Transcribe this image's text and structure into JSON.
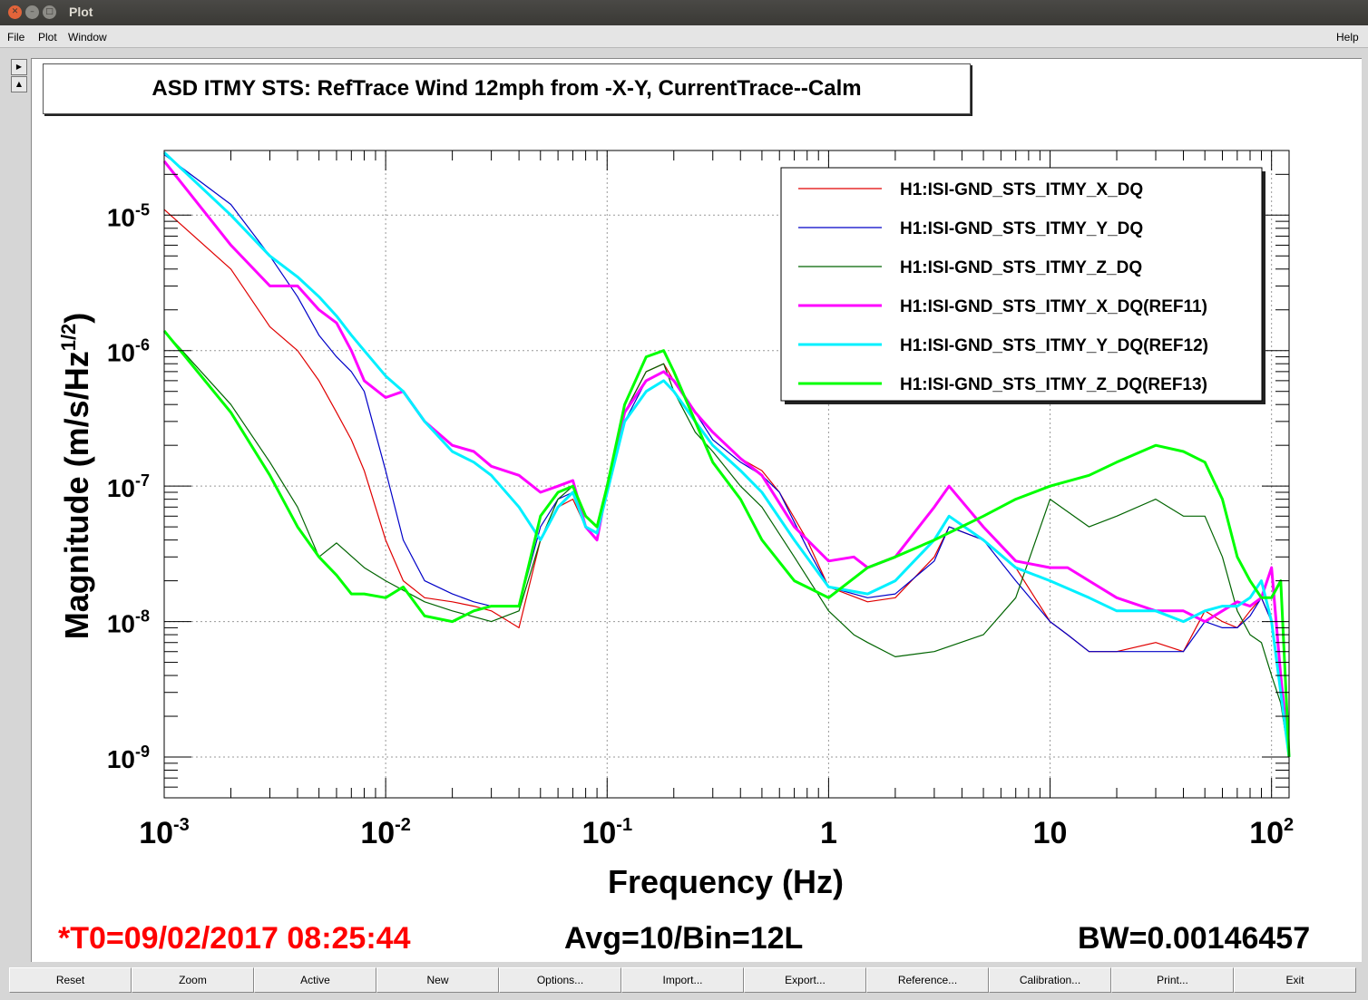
{
  "window": {
    "title": "Plot"
  },
  "menu": {
    "file": "File",
    "plot": "Plot",
    "window": "Window",
    "help": "Help"
  },
  "plot_title": "ASD ITMY STS: RefTrace Wind 12mph from -X-Y, CurrentTrace--Calm",
  "footer": {
    "t0": "*T0=09/02/2017 08:25:44",
    "avg": "Avg=10/Bin=12L",
    "bw": "BW=0.00146457"
  },
  "buttons": [
    "Reset",
    "Zoom",
    "Active",
    "New",
    "Options...",
    "Import...",
    "Export...",
    "Reference...",
    "Calibration...",
    "Print...",
    "Exit"
  ],
  "colors": {
    "red": "#e00000",
    "blue": "#0000c8",
    "darkgreen": "#006400",
    "magenta": "#ff00ff",
    "cyan": "#00f0ff",
    "green": "#00ff00",
    "footer_red": "#ff0000"
  },
  "chart_data": {
    "type": "line",
    "xlabel": "Frequency (Hz)",
    "ylabel": "Magnitude (m/s/Hz^1/2)",
    "xscale": "log",
    "yscale": "log",
    "xlim": [
      0.001,
      120
    ],
    "ylim": [
      5e-10,
      3e-05
    ],
    "grid": true,
    "legend_position": "top-right",
    "x_ticks": [
      {
        "base": "10",
        "exp": "-3"
      },
      {
        "base": "10",
        "exp": "-2"
      },
      {
        "base": "10",
        "exp": "-1"
      },
      {
        "base": "1",
        "exp": ""
      },
      {
        "base": "10",
        "exp": ""
      },
      {
        "base": "10",
        "exp": "2"
      }
    ],
    "y_ticks": [
      {
        "base": "10",
        "exp": "-5"
      },
      {
        "base": "10",
        "exp": "-6"
      },
      {
        "base": "10",
        "exp": "-7"
      },
      {
        "base": "10",
        "exp": "-8"
      },
      {
        "base": "10",
        "exp": "-9"
      }
    ],
    "series": [
      {
        "name": "H1:ISI-GND_STS_ITMY_X_DQ",
        "color": "#e00000",
        "width": 1.2,
        "x": [
          0.001,
          0.002,
          0.003,
          0.004,
          0.005,
          0.006,
          0.007,
          0.008,
          0.01,
          0.012,
          0.015,
          0.02,
          0.025,
          0.03,
          0.04,
          0.05,
          0.06,
          0.07,
          0.08,
          0.09,
          0.1,
          0.12,
          0.15,
          0.18,
          0.2,
          0.25,
          0.3,
          0.4,
          0.5,
          0.6,
          0.8,
          1,
          1.5,
          2,
          3,
          3.5,
          5,
          7,
          10,
          12,
          15,
          20,
          30,
          40,
          50,
          60,
          70,
          80,
          90,
          100,
          110,
          120
        ],
        "y": [
          1.1e-05,
          4e-06,
          1.5e-06,
          1e-06,
          6e-07,
          3.5e-07,
          2.2e-07,
          1.3e-07,
          4e-08,
          2e-08,
          1.5e-08,
          1.4e-08,
          1.3e-08,
          1.2e-08,
          9e-09,
          4e-08,
          7e-08,
          8e-08,
          5e-08,
          4e-08,
          1e-07,
          3.5e-07,
          7e-07,
          8e-07,
          6e-07,
          3.5e-07,
          2.5e-07,
          1.6e-07,
          1.3e-07,
          9e-08,
          4e-08,
          1.8e-08,
          1.4e-08,
          1.5e-08,
          3e-08,
          5e-08,
          4e-08,
          2.5e-08,
          1e-08,
          8e-09,
          6e-09,
          6e-09,
          7e-09,
          6e-09,
          1.2e-08,
          1e-08,
          9e-09,
          1.2e-08,
          1.5e-08,
          1e-08,
          3e-09,
          1e-09
        ]
      },
      {
        "name": "H1:ISI-GND_STS_ITMY_Y_DQ",
        "color": "#0000c8",
        "width": 1.2,
        "x": [
          0.001,
          0.002,
          0.003,
          0.004,
          0.005,
          0.006,
          0.007,
          0.008,
          0.01,
          0.012,
          0.015,
          0.02,
          0.025,
          0.03,
          0.04,
          0.05,
          0.06,
          0.07,
          0.08,
          0.09,
          0.1,
          0.12,
          0.15,
          0.18,
          0.2,
          0.25,
          0.3,
          0.4,
          0.5,
          0.6,
          0.8,
          1,
          1.5,
          2,
          3,
          3.5,
          5,
          7,
          10,
          12,
          15,
          20,
          30,
          40,
          50,
          60,
          70,
          80,
          90,
          100,
          110,
          120
        ],
        "y": [
          2.8e-05,
          1.2e-05,
          5e-06,
          2.5e-06,
          1.3e-06,
          9e-07,
          7e-07,
          5e-07,
          1.3e-07,
          4e-08,
          2e-08,
          1.6e-08,
          1.4e-08,
          1.3e-08,
          1.3e-08,
          5e-08,
          8e-08,
          9e-08,
          5e-08,
          4.5e-08,
          1e-07,
          3e-07,
          6e-07,
          7e-07,
          6e-07,
          3.5e-07,
          2.2e-07,
          1.5e-07,
          1.2e-07,
          9e-08,
          3.5e-08,
          1.8e-08,
          1.5e-08,
          1.6e-08,
          2.8e-08,
          5e-08,
          4e-08,
          2e-08,
          1e-08,
          8e-09,
          6e-09,
          6e-09,
          6e-09,
          6e-09,
          1e-08,
          9e-09,
          9e-09,
          1.1e-08,
          1.5e-08,
          1e-08,
          3e-09,
          1e-09
        ]
      },
      {
        "name": "H1:ISI-GND_STS_ITMY_Z_DQ",
        "color": "#006400",
        "width": 1.2,
        "x": [
          0.001,
          0.002,
          0.003,
          0.004,
          0.005,
          0.006,
          0.008,
          0.01,
          0.015,
          0.02,
          0.03,
          0.04,
          0.05,
          0.06,
          0.07,
          0.08,
          0.09,
          0.1,
          0.12,
          0.15,
          0.18,
          0.2,
          0.25,
          0.3,
          0.4,
          0.5,
          0.7,
          1,
          1.3,
          1.5,
          2,
          3,
          5,
          7,
          10,
          15,
          20,
          30,
          40,
          50,
          60,
          70,
          80,
          90,
          100,
          110,
          120
        ],
        "y": [
          1.4e-06,
          4e-07,
          1.5e-07,
          7e-08,
          3e-08,
          3.8e-08,
          2.5e-08,
          2e-08,
          1.4e-08,
          1.2e-08,
          1e-08,
          1.2e-08,
          4e-08,
          8e-08,
          1e-07,
          6e-08,
          5e-08,
          1e-07,
          3.5e-07,
          7e-07,
          8e-07,
          5e-07,
          2.5e-07,
          1.8e-07,
          1e-07,
          7e-08,
          3e-08,
          1.2e-08,
          8e-09,
          7e-09,
          5.5e-09,
          6e-09,
          8e-09,
          1.5e-08,
          8e-08,
          5e-08,
          6e-08,
          8e-08,
          6e-08,
          6e-08,
          3e-08,
          1.2e-08,
          8e-09,
          7e-09,
          4e-09,
          2.5e-09,
          1e-09
        ]
      },
      {
        "name": "H1:ISI-GND_STS_ITMY_X_DQ(REF11)",
        "color": "#ff00ff",
        "width": 3,
        "x": [
          0.001,
          0.002,
          0.003,
          0.004,
          0.005,
          0.006,
          0.007,
          0.008,
          0.01,
          0.012,
          0.015,
          0.02,
          0.025,
          0.03,
          0.04,
          0.05,
          0.06,
          0.07,
          0.08,
          0.09,
          0.1,
          0.12,
          0.15,
          0.18,
          0.2,
          0.25,
          0.3,
          0.4,
          0.5,
          0.7,
          1,
          1.3,
          1.5,
          2,
          3,
          3.5,
          5,
          7,
          10,
          12,
          15,
          20,
          30,
          40,
          50,
          60,
          70,
          80,
          90,
          100,
          110,
          120
        ],
        "y": [
          2.5e-05,
          6e-06,
          3e-06,
          3e-06,
          2e-06,
          1.6e-06,
          1e-06,
          6e-07,
          4.5e-07,
          5e-07,
          3e-07,
          2e-07,
          1.8e-07,
          1.4e-07,
          1.2e-07,
          9e-08,
          1e-07,
          1.1e-07,
          5e-08,
          4e-08,
          1e-07,
          3.5e-07,
          6e-07,
          7e-07,
          6e-07,
          3.5e-07,
          2.5e-07,
          1.6e-07,
          1.2e-07,
          5e-08,
          2.8e-08,
          3e-08,
          2.5e-08,
          3e-08,
          7e-08,
          1e-07,
          5e-08,
          2.8e-08,
          2.5e-08,
          2.5e-08,
          2e-08,
          1.5e-08,
          1.2e-08,
          1.2e-08,
          1e-08,
          1.2e-08,
          1.4e-08,
          1.3e-08,
          1.5e-08,
          2.5e-08,
          4e-09,
          1e-09
        ]
      },
      {
        "name": "H1:ISI-GND_STS_ITMY_Y_DQ(REF12)",
        "color": "#00f0ff",
        "width": 3,
        "x": [
          0.001,
          0.002,
          0.003,
          0.004,
          0.005,
          0.006,
          0.007,
          0.008,
          0.01,
          0.012,
          0.015,
          0.02,
          0.025,
          0.03,
          0.04,
          0.05,
          0.06,
          0.07,
          0.08,
          0.09,
          0.1,
          0.12,
          0.15,
          0.18,
          0.2,
          0.25,
          0.3,
          0.4,
          0.5,
          0.7,
          1,
          1.5,
          2,
          3,
          3.5,
          5,
          7,
          10,
          15,
          20,
          30,
          40,
          50,
          60,
          70,
          80,
          90,
          100,
          110,
          120
        ],
        "y": [
          2.9e-05,
          1e-05,
          5e-06,
          3.5e-06,
          2.5e-06,
          1.8e-06,
          1.3e-06,
          1e-06,
          6.5e-07,
          5e-07,
          3e-07,
          1.8e-07,
          1.5e-07,
          1.2e-07,
          7e-08,
          4e-08,
          7e-08,
          9e-08,
          5e-08,
          4.5e-08,
          9e-08,
          3e-07,
          5e-07,
          6e-07,
          5e-07,
          3e-07,
          2e-07,
          1.3e-07,
          9e-08,
          4e-08,
          1.8e-08,
          1.6e-08,
          2e-08,
          4e-08,
          6e-08,
          4e-08,
          2.5e-08,
          2e-08,
          1.5e-08,
          1.2e-08,
          1.2e-08,
          1e-08,
          1.2e-08,
          1.3e-08,
          1.3e-08,
          1.5e-08,
          2e-08,
          1e-08,
          3e-09,
          1e-09
        ]
      },
      {
        "name": "H1:ISI-GND_STS_ITMY_Z_DQ(REF13)",
        "color": "#00ff00",
        "width": 3,
        "x": [
          0.001,
          0.002,
          0.003,
          0.004,
          0.005,
          0.006,
          0.007,
          0.008,
          0.01,
          0.012,
          0.015,
          0.02,
          0.025,
          0.03,
          0.04,
          0.05,
          0.06,
          0.07,
          0.08,
          0.09,
          0.1,
          0.12,
          0.15,
          0.18,
          0.2,
          0.25,
          0.3,
          0.4,
          0.5,
          0.7,
          1,
          1.5,
          2,
          3,
          5,
          7,
          10,
          15,
          20,
          30,
          40,
          50,
          60,
          70,
          80,
          90,
          100,
          110,
          120
        ],
        "y": [
          1.4e-06,
          3.5e-07,
          1.2e-07,
          5e-08,
          3e-08,
          2.2e-08,
          1.6e-08,
          1.6e-08,
          1.5e-08,
          1.8e-08,
          1.1e-08,
          1e-08,
          1.2e-08,
          1.3e-08,
          1.3e-08,
          6e-08,
          9e-08,
          1e-07,
          6e-08,
          5e-08,
          1e-07,
          4e-07,
          9e-07,
          1e-06,
          7e-07,
          3e-07,
          1.5e-07,
          8e-08,
          4e-08,
          2e-08,
          1.5e-08,
          2.5e-08,
          3e-08,
          4e-08,
          6e-08,
          8e-08,
          1e-07,
          1.2e-07,
          1.5e-07,
          2e-07,
          1.8e-07,
          1.5e-07,
          8e-08,
          3e-08,
          2e-08,
          1.5e-08,
          1.5e-08,
          2e-08,
          1e-09
        ]
      }
    ]
  }
}
